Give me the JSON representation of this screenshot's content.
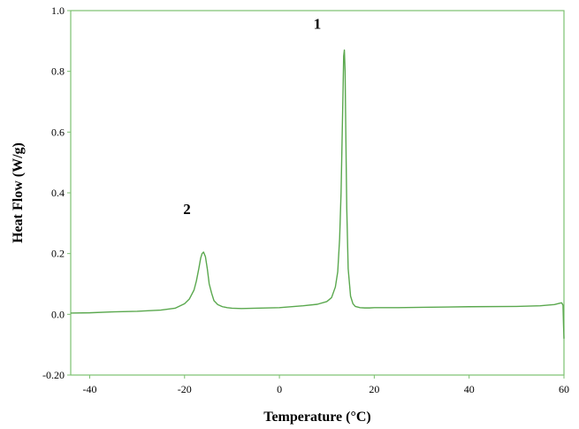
{
  "chart_data": {
    "type": "line",
    "title": "",
    "xlabel": "Temperature (°C)",
    "ylabel": "Heat Flow (W/g)",
    "xlim": [
      -44,
      60
    ],
    "ylim": [
      -0.2,
      1.0
    ],
    "xticks": [
      -40,
      -20,
      0,
      20,
      40,
      60
    ],
    "xtick_labels": [
      "-40",
      "-20",
      "0",
      "20",
      "40",
      "60"
    ],
    "yticks": [
      -0.2,
      0.0,
      0.2,
      0.4,
      0.6,
      0.8,
      1.0
    ],
    "ytick_labels": [
      "-0.20",
      "0.0",
      "0.2",
      "0.4",
      "0.6",
      "0.8",
      "1.0"
    ],
    "grid": false,
    "line_color": "#5aa84e",
    "frame_color": "#7cc070",
    "series": [
      {
        "x": [
          -44,
          -40,
          -35,
          -30,
          -25,
          -22,
          -20,
          -19,
          -18,
          -17.5,
          -17,
          -16.6,
          -16.3,
          -16.0,
          -15.6,
          -15.2,
          -14.8,
          -14.3,
          -13.8,
          -13,
          -12,
          -11,
          -10,
          -8,
          -5,
          0,
          5,
          8,
          10,
          11,
          11.8,
          12.3,
          12.7,
          13.0,
          13.2,
          13.4,
          13.55,
          13.7,
          13.85,
          14.0,
          14.2,
          14.5,
          15,
          15.5,
          16,
          17,
          18,
          19,
          20,
          25,
          30,
          40,
          50,
          55,
          58,
          59,
          59.5,
          59.8,
          59.9,
          60.0
        ],
        "y": [
          0.004,
          0.005,
          0.008,
          0.01,
          0.014,
          0.02,
          0.035,
          0.05,
          0.08,
          0.11,
          0.15,
          0.185,
          0.2,
          0.205,
          0.19,
          0.15,
          0.1,
          0.07,
          0.045,
          0.032,
          0.025,
          0.022,
          0.02,
          0.019,
          0.02,
          0.022,
          0.028,
          0.033,
          0.042,
          0.055,
          0.09,
          0.14,
          0.25,
          0.4,
          0.56,
          0.72,
          0.85,
          0.87,
          0.8,
          0.6,
          0.35,
          0.15,
          0.06,
          0.035,
          0.026,
          0.022,
          0.021,
          0.021,
          0.022,
          0.022,
          0.023,
          0.025,
          0.026,
          0.028,
          0.032,
          0.036,
          0.038,
          0.03,
          -0.03,
          -0.08
        ]
      }
    ],
    "annotations": [
      {
        "text": "1",
        "x": 8,
        "y": 0.94
      },
      {
        "text": "2",
        "x": -19.5,
        "y": 0.33
      }
    ]
  }
}
